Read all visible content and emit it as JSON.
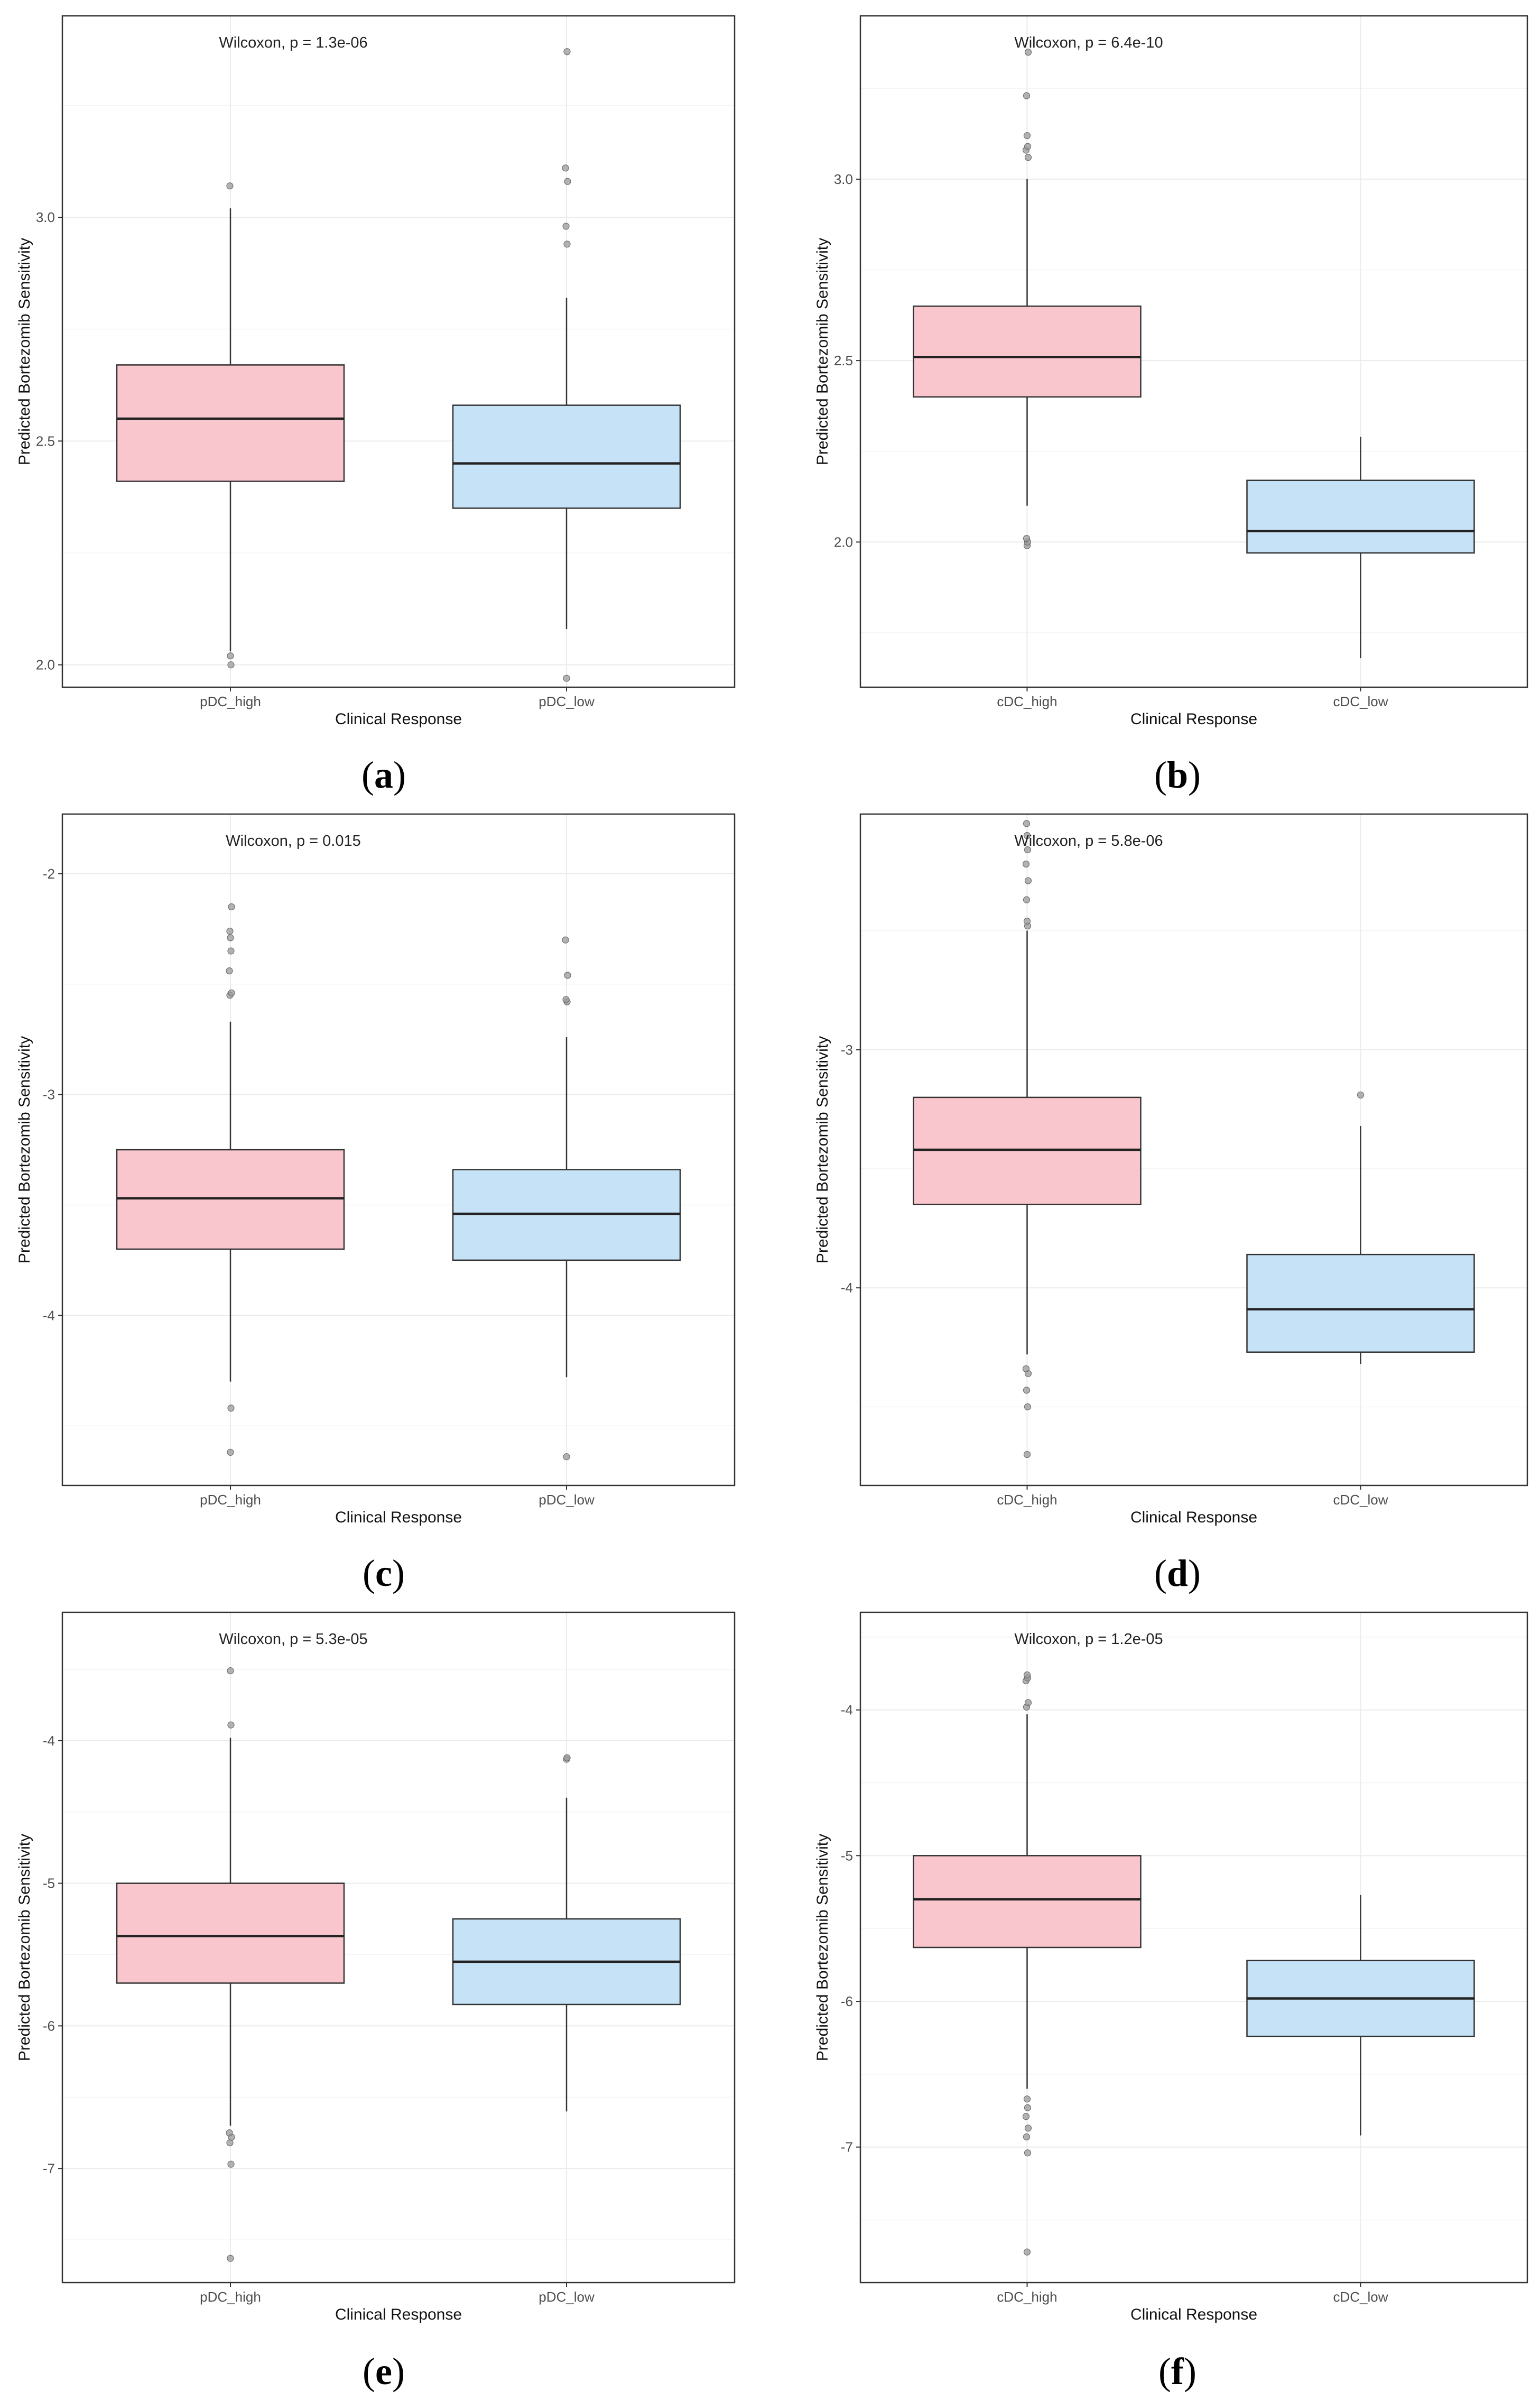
{
  "colors": {
    "high": "#f8c6cc",
    "low": "#c6e2f6"
  },
  "chart_data": [
    {
      "type": "boxplot",
      "panel": "a",
      "annotation": "Wilcoxon, p = 1.3e-06",
      "xlabel": "Clinical Response",
      "ylabel": "Predicted Bortezomib Sensitivity",
      "ylim": [
        1.95,
        3.45
      ],
      "yticks": [
        2.0,
        2.5,
        3.0
      ],
      "yticklabels": [
        "2.0",
        "2.5",
        "3.0"
      ],
      "groups": [
        {
          "name": "pDC_high",
          "color_key": "high",
          "whisker_low": 2.03,
          "q1": 2.41,
          "median": 2.55,
          "q3": 2.67,
          "whisker_high": 3.02,
          "outliers": [
            2.02,
            2.0,
            3.07
          ]
        },
        {
          "name": "pDC_low",
          "color_key": "low",
          "whisker_low": 2.08,
          "q1": 2.35,
          "median": 2.45,
          "q3": 2.58,
          "whisker_high": 2.82,
          "outliers": [
            1.97,
            2.94,
            2.98,
            3.08,
            3.11,
            3.37
          ]
        }
      ]
    },
    {
      "type": "boxplot",
      "panel": "b",
      "annotation": "Wilcoxon, p = 6.4e-10",
      "xlabel": "Clinical Response",
      "ylabel": "Predicted Bortezomib Sensitivity",
      "ylim": [
        1.6,
        3.45
      ],
      "yticks": [
        2.0,
        2.5,
        3.0
      ],
      "yticklabels": [
        "2.0",
        "2.5",
        "3.0"
      ],
      "groups": [
        {
          "name": "cDC_high",
          "color_key": "high",
          "whisker_low": 2.1,
          "q1": 2.4,
          "median": 2.51,
          "q3": 2.65,
          "whisker_high": 3.0,
          "outliers": [
            1.99,
            2.0,
            2.01,
            3.06,
            3.08,
            3.09,
            3.12,
            3.23,
            3.35
          ]
        },
        {
          "name": "cDC_low",
          "color_key": "low",
          "whisker_low": 1.68,
          "q1": 1.97,
          "median": 2.03,
          "q3": 2.17,
          "whisker_high": 2.29,
          "outliers": []
        }
      ]
    },
    {
      "type": "boxplot",
      "panel": "c",
      "annotation": "Wilcoxon, p = 0.015",
      "xlabel": "Clinical Response",
      "ylabel": "Predicted Bortezomib Sensitivity",
      "ylim": [
        -4.77,
        -1.73
      ],
      "yticks": [
        -4,
        -3,
        -2
      ],
      "yticklabels": [
        "-4",
        "-3",
        "-2"
      ],
      "groups": [
        {
          "name": "pDC_high",
          "color_key": "high",
          "whisker_low": -4.3,
          "q1": -3.7,
          "median": -3.47,
          "q3": -3.25,
          "whisker_high": -2.67,
          "outliers": [
            -4.62,
            -4.42,
            -2.55,
            -2.54,
            -2.44,
            -2.35,
            -2.29,
            -2.26,
            -2.15
          ]
        },
        {
          "name": "pDC_low",
          "color_key": "low",
          "whisker_low": -4.28,
          "q1": -3.75,
          "median": -3.54,
          "q3": -3.34,
          "whisker_high": -2.74,
          "outliers": [
            -4.64,
            -2.58,
            -2.57,
            -2.46,
            -2.3
          ]
        }
      ]
    },
    {
      "type": "boxplot",
      "panel": "d",
      "annotation": "Wilcoxon, p = 5.8e-06",
      "xlabel": "Clinical Response",
      "ylabel": "Predicted Bortezomib Sensitivity",
      "ylim": [
        -4.83,
        -2.01
      ],
      "yticks": [
        -4,
        -3
      ],
      "yticklabels": [
        "-4",
        "-3"
      ],
      "groups": [
        {
          "name": "cDC_high",
          "color_key": "high",
          "whisker_low": -4.28,
          "q1": -3.65,
          "median": -3.42,
          "q3": -3.2,
          "whisker_high": -2.5,
          "outliers": [
            -4.7,
            -4.5,
            -4.43,
            -4.36,
            -4.34,
            -2.48,
            -2.46,
            -2.37,
            -2.29,
            -2.22,
            -2.16,
            -2.1,
            -2.05
          ]
        },
        {
          "name": "cDC_low",
          "color_key": "low",
          "whisker_low": -4.32,
          "q1": -4.27,
          "median": -4.09,
          "q3": -3.86,
          "whisker_high": -3.32,
          "outliers": [
            -3.19
          ]
        }
      ]
    },
    {
      "type": "boxplot",
      "panel": "e",
      "annotation": "Wilcoxon, p = 5.3e-05",
      "xlabel": "Clinical Response",
      "ylabel": "Predicted Bortezomib Sensitivity",
      "ylim": [
        -7.8,
        -3.1
      ],
      "yticks": [
        -7,
        -6,
        -5,
        -4
      ],
      "yticklabels": [
        "-7",
        "-6",
        "-5",
        "-4"
      ],
      "groups": [
        {
          "name": "pDC_high",
          "color_key": "high",
          "whisker_low": -6.7,
          "q1": -5.7,
          "median": -5.37,
          "q3": -5.0,
          "whisker_high": -3.98,
          "outliers": [
            -7.63,
            -6.97,
            -6.82,
            -6.78,
            -6.75,
            -3.89,
            -3.51
          ]
        },
        {
          "name": "pDC_low",
          "color_key": "low",
          "whisker_low": -6.6,
          "q1": -5.85,
          "median": -5.55,
          "q3": -5.25,
          "whisker_high": -4.4,
          "outliers": [
            -4.13,
            -4.12
          ]
        }
      ]
    },
    {
      "type": "boxplot",
      "panel": "f",
      "annotation": "Wilcoxon, p = 1.2e-05",
      "xlabel": "Clinical Response",
      "ylabel": "Predicted Bortezomib Sensitivity",
      "ylim": [
        -7.93,
        -3.33
      ],
      "yticks": [
        -7,
        -6,
        -5,
        -4
      ],
      "yticklabels": [
        "-7",
        "-6",
        "-5",
        "-4"
      ],
      "groups": [
        {
          "name": "cDC_high",
          "color_key": "high",
          "whisker_low": -6.6,
          "q1": -5.63,
          "median": -5.3,
          "q3": -5.0,
          "whisker_high": -4.03,
          "outliers": [
            -7.72,
            -7.04,
            -6.93,
            -6.87,
            -6.79,
            -6.73,
            -6.67,
            -3.98,
            -3.95,
            -3.8,
            -3.78,
            -3.76
          ]
        },
        {
          "name": "cDC_low",
          "color_key": "low",
          "whisker_low": -6.92,
          "q1": -6.24,
          "median": -5.98,
          "q3": -5.72,
          "whisker_high": -5.27,
          "outliers": []
        }
      ]
    }
  ]
}
